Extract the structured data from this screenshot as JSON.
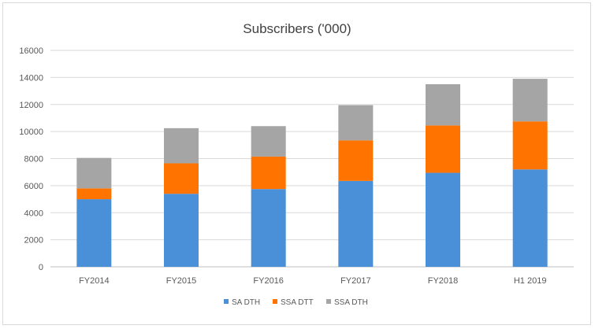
{
  "chart_data": {
    "type": "bar",
    "stacked": true,
    "title": "Subscribers ('000)",
    "xlabel": "",
    "ylabel": "",
    "categories": [
      "FY2014",
      "FY2015",
      "FY2016",
      "FY2017",
      "FY2018",
      "H1 2019"
    ],
    "series": [
      {
        "name": "SA DTH",
        "color": "#4a90d9",
        "values": [
          5000,
          5400,
          5750,
          6350,
          6950,
          7200
        ]
      },
      {
        "name": "SSA DTT",
        "color": "#ff7300",
        "values": [
          800,
          2250,
          2400,
          3000,
          3500,
          3550
        ]
      },
      {
        "name": "SSA DTH",
        "color": "#a5a5a5",
        "values": [
          2250,
          2600,
          2250,
          2600,
          3050,
          3150
        ]
      }
    ],
    "ylim": [
      0,
      16000
    ],
    "yticks": [
      0,
      2000,
      4000,
      6000,
      8000,
      10000,
      12000,
      14000,
      16000
    ],
    "grid": true,
    "legend": "bottom"
  }
}
